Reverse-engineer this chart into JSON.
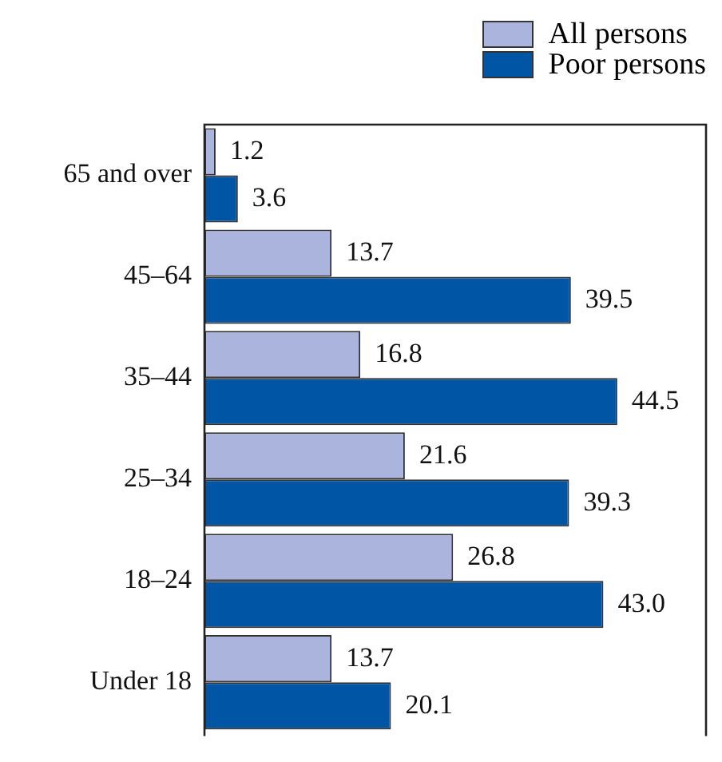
{
  "chart_data": {
    "type": "bar",
    "orientation": "horizontal",
    "categories": [
      "65 and over",
      "45–64",
      "35–44",
      "25–34",
      "18–24",
      "Under 18"
    ],
    "series": [
      {
        "name": "All persons",
        "color": "#aab4dc",
        "values": [
          1.2,
          13.7,
          16.8,
          21.6,
          26.8,
          13.7
        ],
        "value_labels": [
          "1.2",
          "13.7",
          "16.8",
          "21.6",
          "26.8",
          "13.7"
        ]
      },
      {
        "name": "Poor persons",
        "color": "#0055a5",
        "values": [
          3.6,
          39.5,
          44.5,
          39.3,
          43.0,
          20.1
        ],
        "value_labels": [
          "3.6",
          "39.5",
          "44.5",
          "39.3",
          "43.0",
          "20.1"
        ]
      }
    ],
    "tick_labels": "y",
    "grid": false,
    "legend": "top right"
  }
}
